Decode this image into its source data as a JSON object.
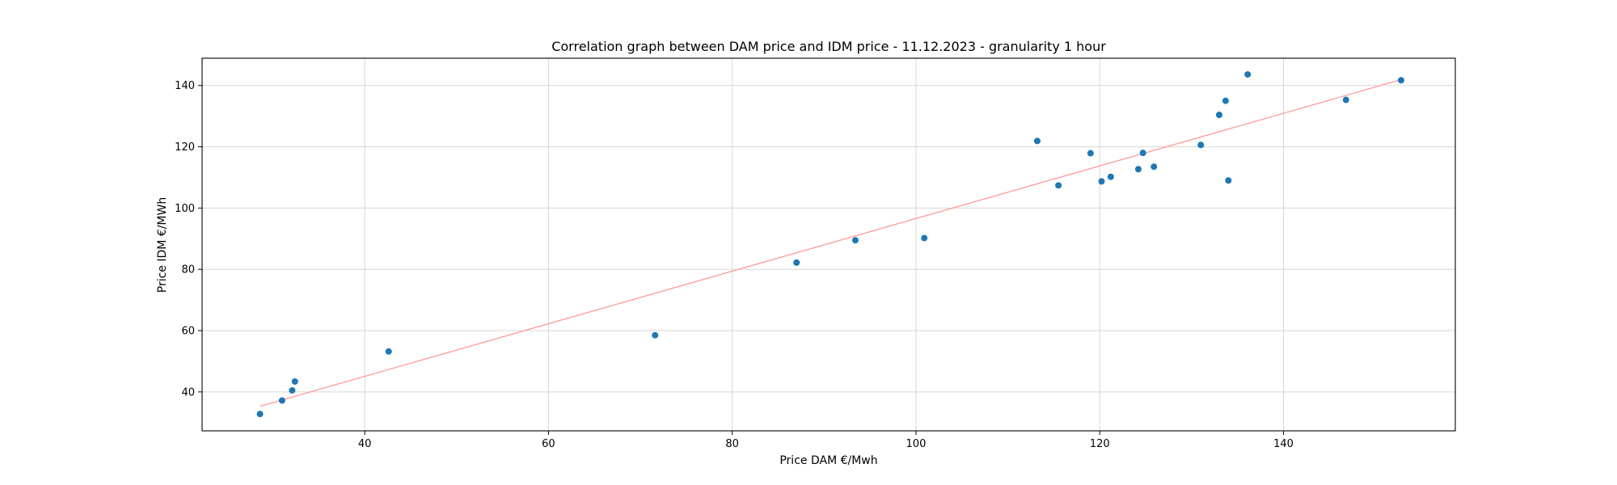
{
  "chart_data": {
    "type": "scatter",
    "title": "Correlation graph between DAM price and IDM price - 11.12.2023 - granularity 1 hour",
    "xlabel": "Price DAM €/Mwh",
    "ylabel": "Price IDM €/MWh",
    "xlim": [
      22.3,
      158.7
    ],
    "ylim": [
      27.3,
      148.9
    ],
    "xticks": [
      40,
      60,
      80,
      100,
      120,
      140
    ],
    "yticks": [
      40,
      60,
      80,
      100,
      120,
      140
    ],
    "grid": true,
    "colors": {
      "points": "#1f77b4",
      "trend": "#ff9999"
    },
    "series": [
      {
        "points": [
          [
            28.6,
            32.8
          ],
          [
            31.0,
            37.2
          ],
          [
            32.1,
            40.5
          ],
          [
            32.4,
            43.4
          ],
          [
            42.6,
            53.2
          ],
          [
            71.6,
            58.5
          ],
          [
            87.0,
            82.2
          ],
          [
            93.4,
            89.5
          ],
          [
            100.9,
            90.2
          ],
          [
            113.2,
            121.9
          ],
          [
            115.5,
            107.4
          ],
          [
            119.0,
            117.9
          ],
          [
            120.2,
            108.7
          ],
          [
            121.2,
            110.2
          ],
          [
            124.2,
            112.7
          ],
          [
            124.7,
            118.0
          ],
          [
            125.9,
            113.5
          ],
          [
            131.0,
            120.6
          ],
          [
            133.0,
            130.4
          ],
          [
            133.7,
            135.0
          ],
          [
            134.0,
            109.0
          ],
          [
            136.1,
            143.6
          ],
          [
            146.8,
            135.3
          ],
          [
            152.8,
            141.7
          ]
        ]
      }
    ],
    "trendline": [
      [
        28.6,
        35.3
      ],
      [
        152.8,
        141.9
      ]
    ]
  }
}
